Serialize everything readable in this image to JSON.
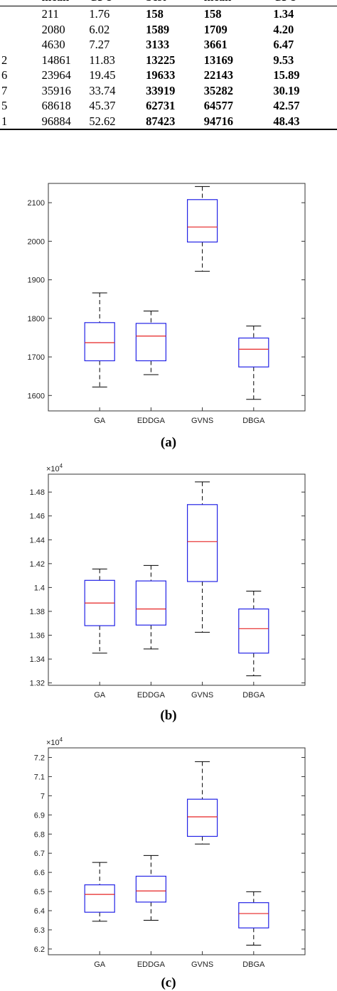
{
  "table": {
    "header": [
      "",
      "mean",
      "CPU",
      "best",
      "mean",
      "CPU"
    ],
    "rows": [
      [
        "",
        "211",
        "1.76",
        "158",
        "158",
        "1.34"
      ],
      [
        "",
        "2080",
        "6.02",
        "1589",
        "1709",
        "4.20"
      ],
      [
        "",
        "4630",
        "7.27",
        "3133",
        "3661",
        "6.47"
      ],
      [
        "2",
        "14861",
        "11.83",
        "13225",
        "13169",
        "9.53"
      ],
      [
        "6",
        "23964",
        "19.45",
        "19633",
        "22143",
        "15.89"
      ],
      [
        "7",
        "35916",
        "33.74",
        "33919",
        "35282",
        "30.19"
      ],
      [
        "5",
        "68618",
        "45.37",
        "62731",
        "64577",
        "42.57"
      ],
      [
        "1",
        "96884",
        "52.62",
        "87423",
        "94716",
        "48.43"
      ]
    ]
  },
  "captions": [
    "(a)",
    "(b)",
    "(c)"
  ],
  "chart_data": [
    {
      "type": "box",
      "categories": [
        "GA",
        "EDDGA",
        "GVNS",
        "DBGA"
      ],
      "ylim": [
        1560,
        2150
      ],
      "yticks": [
        1600,
        1700,
        1800,
        1900,
        2000,
        2100
      ],
      "ytick_labels": [
        "1600",
        "1700",
        "1800",
        "1900",
        "2000",
        "2100"
      ],
      "exponent_label": "",
      "boxes": [
        {
          "min": 1622,
          "q1": 1690,
          "median": 1737,
          "q3": 1789,
          "max": 1866
        },
        {
          "min": 1654,
          "q1": 1690,
          "median": 1754,
          "q3": 1787,
          "max": 1819
        },
        {
          "min": 1922,
          "q1": 1998,
          "median": 2037,
          "q3": 2108,
          "max": 2142
        },
        {
          "min": 1590,
          "q1": 1674,
          "median": 1720,
          "q3": 1749,
          "max": 1780
        }
      ],
      "colors": {
        "box": "#2323e6",
        "median": "#e62323",
        "whisker": "#000000"
      }
    },
    {
      "type": "box",
      "categories": [
        "GA",
        "EDDGA",
        "GVNS",
        "DBGA"
      ],
      "ylim": [
        13180,
        14950
      ],
      "yticks": [
        13200,
        13400,
        13600,
        13800,
        14000,
        14200,
        14400,
        14600,
        14800
      ],
      "ytick_labels": [
        "1.32",
        "1.34",
        "1.36",
        "1.38",
        "1.4",
        "1.42",
        "1.44",
        "1.46",
        "1.48"
      ],
      "exponent_label": "×10",
      "exponent_power": "4",
      "boxes": [
        {
          "min": 13450,
          "q1": 13680,
          "median": 13870,
          "q3": 14060,
          "max": 14155
        },
        {
          "min": 13485,
          "q1": 13685,
          "median": 13820,
          "q3": 14055,
          "max": 14185
        },
        {
          "min": 13625,
          "q1": 14050,
          "median": 14385,
          "q3": 14695,
          "max": 14885
        },
        {
          "min": 13260,
          "q1": 13450,
          "median": 13655,
          "q3": 13820,
          "max": 13970
        }
      ],
      "colors": {
        "box": "#2323e6",
        "median": "#e62323",
        "whisker": "#000000"
      }
    },
    {
      "type": "box",
      "categories": [
        "GA",
        "EDDGA",
        "GVNS",
        "DBGA"
      ],
      "ylim": [
        61700,
        72500
      ],
      "yticks": [
        62000,
        63000,
        64000,
        65000,
        66000,
        67000,
        68000,
        69000,
        70000,
        71000,
        72000
      ],
      "ytick_labels": [
        "6.2",
        "6.3",
        "6.4",
        "6.5",
        "6.6",
        "6.7",
        "6.8",
        "6.9",
        "7",
        "7.1",
        "7.2"
      ],
      "exponent_label": "×10",
      "exponent_power": "4",
      "boxes": [
        {
          "min": 63450,
          "q1": 63920,
          "median": 64850,
          "q3": 65350,
          "max": 66520
        },
        {
          "min": 63500,
          "q1": 64450,
          "median": 65030,
          "q3": 65800,
          "max": 66880
        },
        {
          "min": 67480,
          "q1": 67880,
          "median": 68900,
          "q3": 69820,
          "max": 71780
        },
        {
          "min": 62200,
          "q1": 63100,
          "median": 63850,
          "q3": 64420,
          "max": 64990
        }
      ],
      "colors": {
        "box": "#2323e6",
        "median": "#e62323",
        "whisker": "#000000"
      }
    }
  ]
}
